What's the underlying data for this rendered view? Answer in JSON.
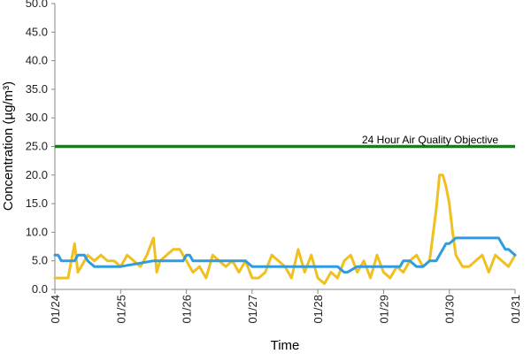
{
  "chart_data": {
    "type": "line",
    "xlabel": "Time",
    "ylabel": "Concentration (µg/m³)",
    "ylim": [
      0,
      50
    ],
    "y_ticks": [
      "0.0",
      "5.0",
      "10.0",
      "15.0",
      "20.0",
      "25.0",
      "30.0",
      "35.0",
      "40.0",
      "45.0",
      "50.0"
    ],
    "x_ticks": [
      "01/24",
      "01/25",
      "01/26",
      "01/27",
      "01/28",
      "01/29",
      "01/30",
      "01/31"
    ],
    "xlim": [
      "01/24",
      "01/31"
    ],
    "grid": false,
    "annotation": "24 Hour Air Quality Objective",
    "objective_value": 25,
    "colors": {
      "objective": "#1f7a1f",
      "series_yellow": "#f0c020",
      "series_blue": "#2f9be0"
    },
    "series": [
      {
        "color_key": "series_yellow",
        "x_days": [
          0,
          0.1,
          0.2,
          0.3,
          0.35,
          0.4,
          0.5,
          0.6,
          0.7,
          0.8,
          0.9,
          1.0,
          1.1,
          1.2,
          1.3,
          1.4,
          1.5,
          1.55,
          1.6,
          1.7,
          1.8,
          1.9,
          2.0,
          2.1,
          2.2,
          2.3,
          2.4,
          2.5,
          2.6,
          2.7,
          2.8,
          2.9,
          3.0,
          3.1,
          3.2,
          3.3,
          3.4,
          3.5,
          3.6,
          3.7,
          3.8,
          3.9,
          4.0,
          4.1,
          4.2,
          4.3,
          4.4,
          4.5,
          4.6,
          4.7,
          4.8,
          4.9,
          5.0,
          5.1,
          5.2,
          5.3,
          5.4,
          5.5,
          5.6,
          5.7,
          5.8,
          5.85,
          5.9,
          5.95,
          6.0,
          6.05,
          6.1,
          6.2,
          6.3,
          6.4,
          6.5,
          6.6,
          6.7,
          6.8,
          6.9,
          7.0
        ],
        "values": [
          2,
          2,
          2,
          8,
          3,
          4,
          6,
          5,
          6,
          5,
          5,
          4,
          6,
          5,
          4,
          6,
          9,
          3,
          5,
          6,
          7,
          7,
          5,
          3,
          4,
          2,
          6,
          5,
          4,
          5,
          3,
          5,
          2,
          2,
          3,
          6,
          5,
          4,
          2,
          7,
          3,
          6,
          2,
          1,
          3,
          2,
          5,
          6,
          3,
          5,
          2,
          6,
          3,
          2,
          4,
          3,
          5,
          6,
          4,
          5,
          14,
          20,
          20,
          18,
          15,
          10,
          6,
          4,
          4,
          5,
          6,
          3,
          6,
          5,
          4,
          6
        ]
      },
      {
        "color_key": "series_blue",
        "x_days": [
          0,
          0.05,
          0.1,
          0.3,
          0.35,
          0.45,
          0.5,
          0.6,
          0.65,
          1.0,
          1.5,
          1.6,
          1.95,
          2.0,
          2.05,
          2.1,
          2.9,
          3.0,
          3.05,
          4.0,
          4.05,
          4.3,
          4.4,
          4.45,
          4.6,
          5.0,
          5.2,
          5.25,
          5.3,
          5.4,
          5.5,
          5.6,
          5.7,
          5.8,
          5.85,
          5.9,
          5.95,
          6.0,
          6.1,
          6.2,
          6.3,
          6.4,
          6.5,
          6.6,
          6.7,
          6.75,
          6.8,
          6.85,
          6.9,
          7.0
        ],
        "values": [
          6,
          6,
          5,
          5,
          6,
          6,
          5,
          4,
          4,
          4,
          5,
          5,
          5,
          6,
          6,
          5,
          5,
          4,
          4,
          4,
          4,
          4,
          3,
          3,
          4,
          4,
          4,
          4,
          5,
          5,
          4,
          4,
          5,
          5,
          6,
          7,
          8,
          8,
          9,
          9,
          9,
          9,
          9,
          9,
          9,
          9,
          8,
          7,
          7,
          6
        ]
      }
    ]
  }
}
